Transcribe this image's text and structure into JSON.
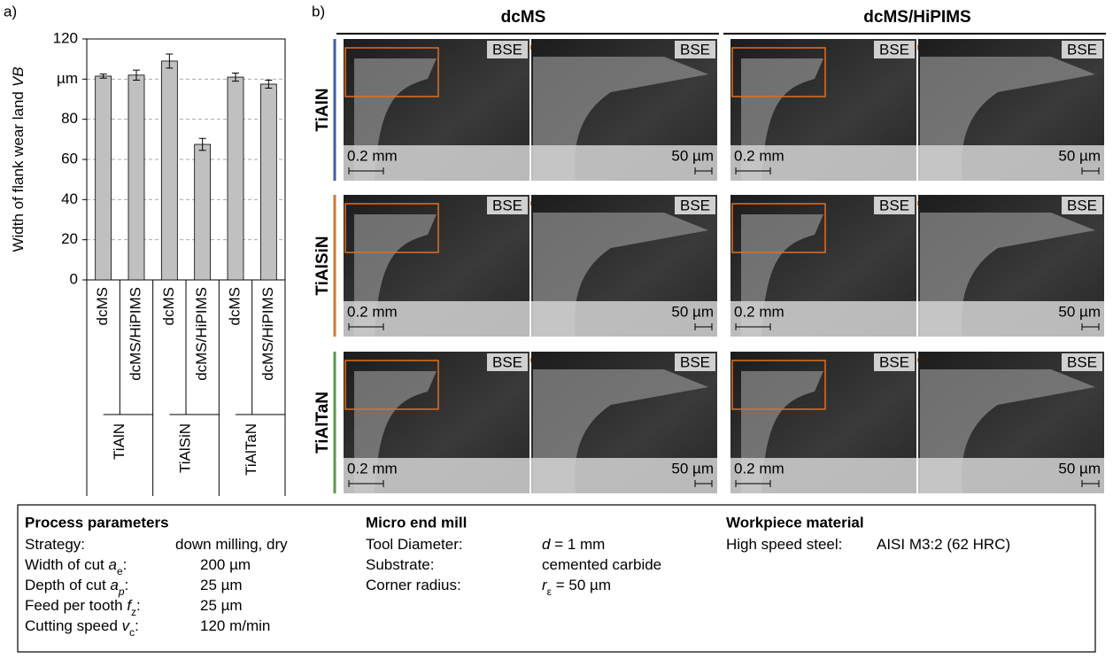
{
  "panel_a_label": "a)",
  "chart_data": {
    "type": "bar",
    "ylabel": {
      "text": "Width of flank wear land",
      "symbol": "VB"
    },
    "categories": [
      "dcMS",
      "dcMS/HiPIMS",
      "dcMS",
      "dcMS/HiPIMS",
      "dcMS",
      "dcMS/HiPIMS"
    ],
    "groups": [
      "TiAlN",
      "TiAlSiN",
      "TiAlTaN"
    ],
    "values": [
      101.5,
      102,
      109,
      67.5,
      101,
      97.5
    ],
    "errors": [
      1,
      2.5,
      3.5,
      3,
      2,
      2
    ],
    "color": "#c0c0c0",
    "ylim": [
      0,
      120
    ],
    "yticks": [
      0,
      20,
      40,
      60,
      80,
      {
        "value": 100,
        "label": "µm"
      },
      120
    ],
    "grid": true
  },
  "panel_b": {
    "label": "b)",
    "columns": [
      "dcMS",
      "dcMS/HiPIMS"
    ],
    "rows": [
      {
        "name": "TiAlN",
        "color": "#3a5fb0"
      },
      {
        "name": "TiAlSiN",
        "color": "#d9782d"
      },
      {
        "name": "TiAlTaN",
        "color": "#5a9a48"
      }
    ],
    "image_labels": {
      "detector": "BSE",
      "scale_overview": "0.2 mm",
      "scale_detail": "50 µm"
    }
  },
  "parameters": {
    "columns": [
      {
        "title": "Process parameters",
        "rows": [
          {
            "label": [
              {
                "t": "Strategy:"
              }
            ],
            "value": [
              {
                "t": "down milling, dry"
              }
            ]
          },
          {
            "label": [
              {
                "t": "Width of cut "
              },
              {
                "t": "a",
                "i": true
              },
              {
                "t": "e",
                "sub": true
              },
              {
                "t": ":"
              }
            ],
            "value": [
              {
                "t": "200 µm"
              }
            ]
          },
          {
            "label": [
              {
                "t": "Depth of cut "
              },
              {
                "t": "a",
                "i": true
              },
              {
                "t": "p",
                "sub": true,
                "i": true
              },
              {
                "t": ":"
              }
            ],
            "value": [
              {
                "t": "25 µm"
              }
            ]
          },
          {
            "label": [
              {
                "t": "Feed per tooth "
              },
              {
                "t": "f",
                "i": true
              },
              {
                "t": "z",
                "sub": true
              },
              {
                "t": ":"
              }
            ],
            "value": [
              {
                "t": "25 µm"
              }
            ]
          },
          {
            "label": [
              {
                "t": "Cutting speed "
              },
              {
                "t": "v",
                "i": true
              },
              {
                "t": "c",
                "sub": true
              },
              {
                "t": ":"
              }
            ],
            "value": [
              {
                "t": "120 m/min"
              }
            ]
          }
        ]
      },
      {
        "title": "Micro end mill",
        "rows": [
          {
            "label": [
              {
                "t": "Tool Diameter:"
              }
            ],
            "value": [
              {
                "t": "d",
                "i": true
              },
              {
                "t": " = 1 mm"
              }
            ]
          },
          {
            "label": [
              {
                "t": "Substrate:"
              }
            ],
            "value": [
              {
                "t": "cemented carbide"
              }
            ]
          },
          {
            "label": [
              {
                "t": "Corner radius:"
              }
            ],
            "value": [
              {
                "t": "r",
                "i": true
              },
              {
                "t": "ε",
                "sub": true
              },
              {
                "t": " = 50 µm"
              }
            ]
          }
        ]
      },
      {
        "title": "Workpiece material",
        "rows": [
          {
            "label": [
              {
                "t": "High speed steel:"
              }
            ],
            "value": [
              {
                "t": "AISI M3:2 (62 HRC)"
              }
            ]
          }
        ]
      }
    ]
  }
}
